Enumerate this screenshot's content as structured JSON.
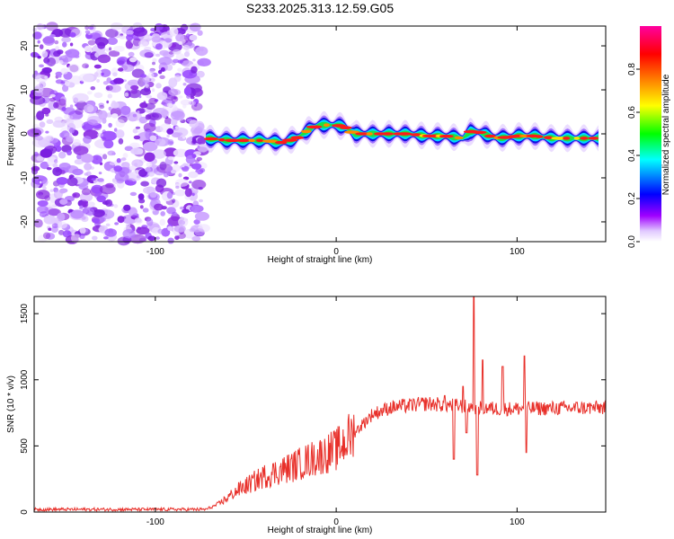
{
  "figure": {
    "title": "S233.2025.313.12.59.G05"
  },
  "chart_data": [
    {
      "type": "heatmap",
      "xlabel": "Height of straight line (km)",
      "ylabel": "Frequency (Hz)",
      "xlim": [
        -167,
        149
      ],
      "ylim": [
        -24.5,
        24.5
      ],
      "xticks": [
        -100,
        0,
        100
      ],
      "yticks": [
        -20,
        -10,
        0,
        10,
        20
      ],
      "colorbar": {
        "label": "Normalized spectral amplitude",
        "ticks": [
          0.0,
          0.2,
          0.4,
          0.6,
          0.8
        ],
        "range": [
          0,
          1
        ],
        "colors": [
          "#ffffff",
          "#a000ff",
          "#0000ff",
          "#00ffff",
          "#00ff00",
          "#ffff00",
          "#ff8000",
          "#ff0000",
          "#ff00a0"
        ]
      },
      "noise_region_x": [
        -167,
        -72
      ],
      "ridge": [
        [
          -72,
          -1.0
        ],
        [
          -60,
          -1.5
        ],
        [
          -50,
          -1.5
        ],
        [
          -40,
          -1.5
        ],
        [
          -30,
          -2.0
        ],
        [
          -22,
          -1.0
        ],
        [
          -15,
          1.0
        ],
        [
          -10,
          2.0
        ],
        [
          0,
          2.0
        ],
        [
          5,
          1.5
        ],
        [
          10,
          0.0
        ],
        [
          20,
          0.0
        ],
        [
          30,
          0.0
        ],
        [
          40,
          0.0
        ],
        [
          50,
          -0.5
        ],
        [
          60,
          -0.5
        ],
        [
          70,
          -1.0
        ],
        [
          74,
          0.5
        ],
        [
          78,
          0.5
        ],
        [
          85,
          -0.5
        ],
        [
          90,
          -1.0
        ],
        [
          100,
          -0.5
        ],
        [
          110,
          -0.5
        ],
        [
          120,
          -1.0
        ],
        [
          130,
          -1.0
        ],
        [
          145,
          -1.0
        ]
      ]
    },
    {
      "type": "line",
      "xlabel": "Height of straight line (km)",
      "ylabel": "SNR (10 * v/v)",
      "xlim": [
        -167,
        149
      ],
      "ylim": [
        0,
        1630
      ],
      "xticks": [
        -100,
        0,
        100
      ],
      "yticks": [
        0,
        500,
        1000,
        1500
      ],
      "color": "#e8302a",
      "trend": [
        [
          -167,
          20
        ],
        [
          -72,
          20
        ],
        [
          -65,
          60
        ],
        [
          -55,
          160
        ],
        [
          -40,
          270
        ],
        [
          -25,
          340
        ],
        [
          -10,
          420
        ],
        [
          0,
          470
        ],
        [
          10,
          600
        ],
        [
          20,
          740
        ],
        [
          30,
          790
        ],
        [
          50,
          820
        ],
        [
          70,
          800
        ],
        [
          90,
          780
        ],
        [
          149,
          790
        ]
      ],
      "spikes": [
        [
          60,
          880
        ],
        [
          65,
          400
        ],
        [
          70,
          950
        ],
        [
          72,
          600
        ],
        [
          76,
          1630
        ],
        [
          78,
          280
        ],
        [
          81,
          1150
        ],
        [
          92,
          1100
        ],
        [
          104,
          1180
        ],
        [
          105,
          450
        ]
      ]
    }
  ]
}
